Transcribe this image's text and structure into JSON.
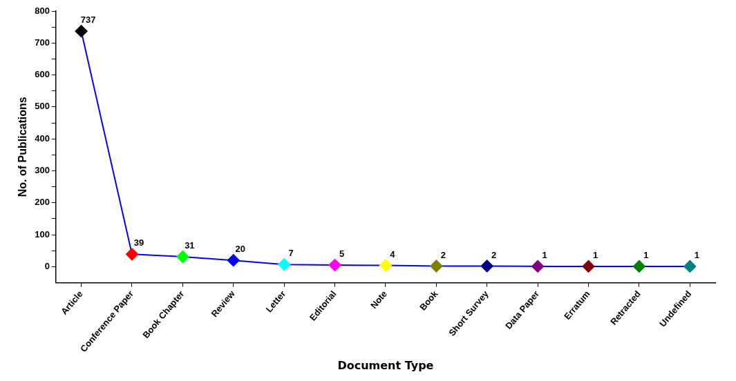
{
  "chart_data": {
    "type": "line",
    "xlabel": "Document Type",
    "ylabel": "No. of Publications",
    "categories": [
      "Article",
      "Conference Paper",
      "Book Chapter",
      "Review",
      "Letter",
      "Editorial",
      "Note",
      "Book",
      "Short Survey",
      "Data Paper",
      "Erratum",
      "Retracted",
      "Undefined"
    ],
    "series": [
      {
        "color": "#0000ff",
        "colors": [
          "#000000",
          "#ff0000",
          "#00ff00",
          "#0000ff",
          "#00ffff",
          "#ff00ff",
          "#ffff00",
          "#808000",
          "#000080",
          "#800080",
          "#800000",
          "#008000",
          "#008080"
        ],
        "values": [
          737,
          39,
          31,
          20,
          7,
          5,
          4,
          2,
          2,
          1,
          1,
          1,
          1
        ]
      }
    ],
    "ylim": [
      -50,
      800
    ],
    "yticks": [
      0,
      {
        "value": 50,
        "label": null
      },
      100,
      {
        "value": 150,
        "label": null
      },
      200,
      {
        "value": 250,
        "label": null
      },
      300,
      {
        "value": 350,
        "label": null
      },
      400,
      {
        "value": 450,
        "label": null
      },
      500,
      {
        "value": 550,
        "label": null
      },
      600,
      {
        "value": 650,
        "label": null
      },
      700,
      {
        "value": 750,
        "label": null
      },
      800
    ],
    "marker": "diamond",
    "line_style": "solid",
    "data_labels": true,
    "grid": false,
    "legend": false
  }
}
